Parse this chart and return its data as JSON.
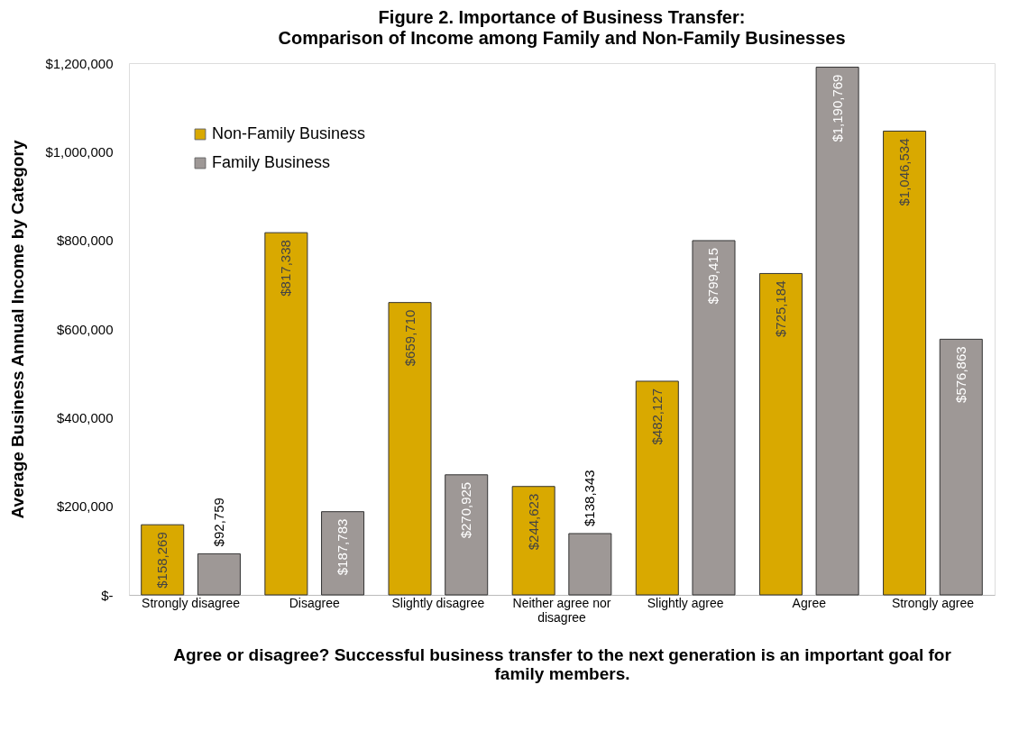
{
  "chart_data": {
    "type": "bar",
    "title": "Figure 2. Importance of Business Transfer:",
    "subtitle": "Comparison of Income among Family and Non-Family Businesses",
    "xlabel": "Agree or disagree? Successful business transfer to the next generation is an important goal for family members.",
    "ylabel": "Average Business Annual Income by Category",
    "categories": [
      "Strongly disagree",
      "Disagree",
      "Slightly disagree",
      "Neither agree nor disagree",
      "Slightly agree",
      "Agree",
      "Strongly agree"
    ],
    "series": [
      {
        "name": "Non-Family Business",
        "color": "#d9a900",
        "values": [
          158269,
          817338,
          659710,
          244623,
          482127,
          725184,
          1046534
        ],
        "value_labels": [
          "$158,269",
          "$817,338",
          "$659,710",
          "$244,623",
          "$482,127",
          "$725,184",
          "$1,046,534"
        ]
      },
      {
        "name": "Family Business",
        "color": "#9e9896",
        "values": [
          92759,
          187783,
          270925,
          138343,
          799415,
          1190769,
          576863
        ],
        "value_labels": [
          "$92,759",
          "$187,783",
          "$270,925",
          "$138,343",
          "$799,415",
          "$1,190,769",
          "$576,863"
        ]
      }
    ],
    "ylim": [
      0,
      1200000
    ],
    "yticks": [
      {
        "value": 0,
        "label": "$-"
      },
      {
        "value": 200000,
        "label": "$200,000"
      },
      {
        "value": 400000,
        "label": "$400,000"
      },
      {
        "value": 600000,
        "label": "$600,000"
      },
      {
        "value": 800000,
        "label": "$800,000"
      },
      {
        "value": 1000000,
        "label": "$1,000,000"
      },
      {
        "value": 1200000,
        "label": "$1,200,000"
      }
    ],
    "grid": false,
    "legend": "top left"
  }
}
